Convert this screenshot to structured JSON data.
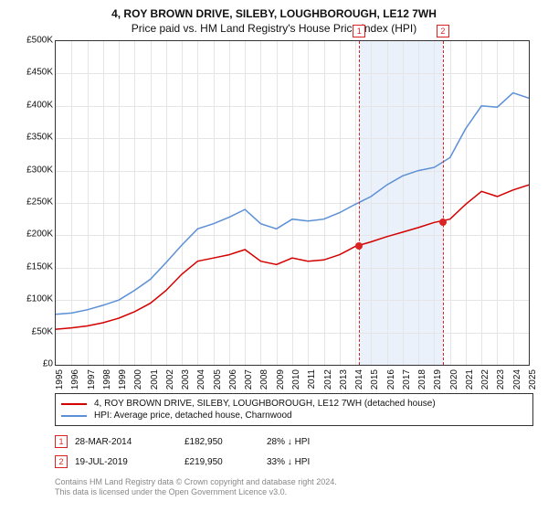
{
  "title": "4, ROY BROWN DRIVE, SILEBY, LOUGHBOROUGH, LE12 7WH",
  "subtitle": "Price paid vs. HM Land Registry's House Price Index (HPI)",
  "chart": {
    "type": "line",
    "y_label_fontsize": 10,
    "x_label_fontsize": 10,
    "ylim": [
      0,
      500000
    ],
    "ytick_step": 50000,
    "y_ticks": [
      "£0",
      "£50K",
      "£100K",
      "£150K",
      "£200K",
      "£250K",
      "£300K",
      "£350K",
      "£400K",
      "£450K",
      "£500K"
    ],
    "xlim": [
      1995,
      2025
    ],
    "x_ticks": [
      1995,
      1996,
      1997,
      1998,
      1999,
      2000,
      2001,
      2002,
      2003,
      2004,
      2005,
      2006,
      2007,
      2008,
      2009,
      2010,
      2011,
      2012,
      2013,
      2014,
      2015,
      2016,
      2017,
      2018,
      2019,
      2020,
      2021,
      2022,
      2023,
      2024,
      2025
    ],
    "grid_color": "#e5e5e5",
    "background_color": "#ffffff",
    "shade_color": "#eaf1fa",
    "shade_from": 2014.24,
    "shade_to": 2019.55,
    "series": [
      {
        "name": "red",
        "label": "4, ROY BROWN DRIVE, SILEBY, LOUGHBOROUGH, LE12 7WH (detached house)",
        "color": "#d40000",
        "line_width": 1.5,
        "points": [
          [
            1995,
            55000
          ],
          [
            1996,
            57000
          ],
          [
            1997,
            60000
          ],
          [
            1998,
            65000
          ],
          [
            1999,
            72000
          ],
          [
            2000,
            82000
          ],
          [
            2001,
            95000
          ],
          [
            2002,
            115000
          ],
          [
            2003,
            140000
          ],
          [
            2004,
            160000
          ],
          [
            2005,
            165000
          ],
          [
            2006,
            170000
          ],
          [
            2007,
            178000
          ],
          [
            2008,
            160000
          ],
          [
            2009,
            155000
          ],
          [
            2010,
            165000
          ],
          [
            2011,
            160000
          ],
          [
            2012,
            162000
          ],
          [
            2013,
            170000
          ],
          [
            2014,
            182950
          ],
          [
            2015,
            190000
          ],
          [
            2016,
            198000
          ],
          [
            2017,
            205000
          ],
          [
            2018,
            212000
          ],
          [
            2019,
            219950
          ],
          [
            2020,
            225000
          ],
          [
            2021,
            248000
          ],
          [
            2022,
            268000
          ],
          [
            2023,
            260000
          ],
          [
            2024,
            270000
          ],
          [
            2025,
            278000
          ]
        ]
      },
      {
        "name": "blue",
        "label": "HPI: Average price, detached house, Charnwood",
        "color": "#5b8fd6",
        "line_width": 1.5,
        "points": [
          [
            1995,
            78000
          ],
          [
            1996,
            80000
          ],
          [
            1997,
            85000
          ],
          [
            1998,
            92000
          ],
          [
            1999,
            100000
          ],
          [
            2000,
            115000
          ],
          [
            2001,
            132000
          ],
          [
            2002,
            158000
          ],
          [
            2003,
            185000
          ],
          [
            2004,
            210000
          ],
          [
            2005,
            218000
          ],
          [
            2006,
            228000
          ],
          [
            2007,
            240000
          ],
          [
            2008,
            218000
          ],
          [
            2009,
            210000
          ],
          [
            2010,
            225000
          ],
          [
            2011,
            222000
          ],
          [
            2012,
            225000
          ],
          [
            2013,
            235000
          ],
          [
            2014,
            248000
          ],
          [
            2015,
            260000
          ],
          [
            2016,
            278000
          ],
          [
            2017,
            292000
          ],
          [
            2018,
            300000
          ],
          [
            2019,
            305000
          ],
          [
            2020,
            320000
          ],
          [
            2021,
            365000
          ],
          [
            2022,
            400000
          ],
          [
            2023,
            398000
          ],
          [
            2024,
            420000
          ],
          [
            2025,
            412000
          ]
        ]
      }
    ],
    "events": [
      {
        "n": "1",
        "date_label": "28-MAR-2014",
        "x": 2014.24,
        "price_label": "£182,950",
        "price": 182950,
        "hpi_diff": "28% ↓ HPI",
        "dash_color": "#d22"
      },
      {
        "n": "2",
        "date_label": "19-JUL-2019",
        "x": 2019.55,
        "price_label": "£219,950",
        "price": 219950,
        "hpi_diff": "33% ↓ HPI",
        "dash_color": "#d22"
      }
    ]
  },
  "legend": {
    "s1": "4, ROY BROWN DRIVE, SILEBY, LOUGHBOROUGH, LE12 7WH (detached house)",
    "s2": "HPI: Average price, detached house, Charnwood"
  },
  "footer": {
    "line1": "Contains HM Land Registry data © Crown copyright and database right 2024.",
    "line2": "This data is licensed under the Open Government Licence v3.0."
  }
}
